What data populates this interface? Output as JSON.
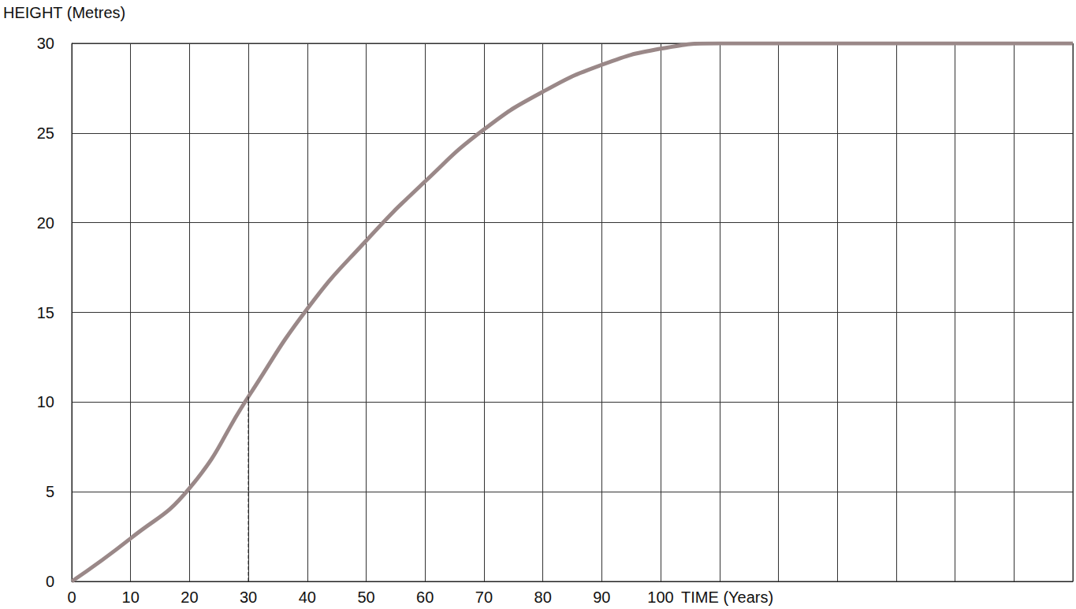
{
  "chart_data": {
    "type": "line",
    "x_label": "TIME (Years)",
    "y_label": "HEIGHT (Metres)",
    "x": [
      0,
      10,
      20,
      30,
      40,
      50,
      60,
      70,
      80,
      90,
      100,
      110,
      120,
      130,
      140,
      150,
      160,
      170
    ],
    "values": [
      0,
      2.4,
      5.2,
      10.3,
      15.2,
      19,
      22.3,
      25.2,
      27.3,
      28.8,
      29.7,
      30,
      30,
      30,
      30,
      30,
      30,
      30
    ],
    "color": "#9a8888",
    "xlim": [
      0,
      170
    ],
    "xticks": [
      0,
      10,
      20,
      30,
      40,
      50,
      60,
      70,
      80,
      90,
      100
    ],
    "ylim": [
      0,
      30
    ],
    "yticks": [
      0,
      5,
      10,
      15,
      20,
      25,
      30
    ],
    "grid": true,
    "reference_line": {
      "x": 30,
      "y_top": 10.3,
      "line_style": "dashed"
    }
  }
}
